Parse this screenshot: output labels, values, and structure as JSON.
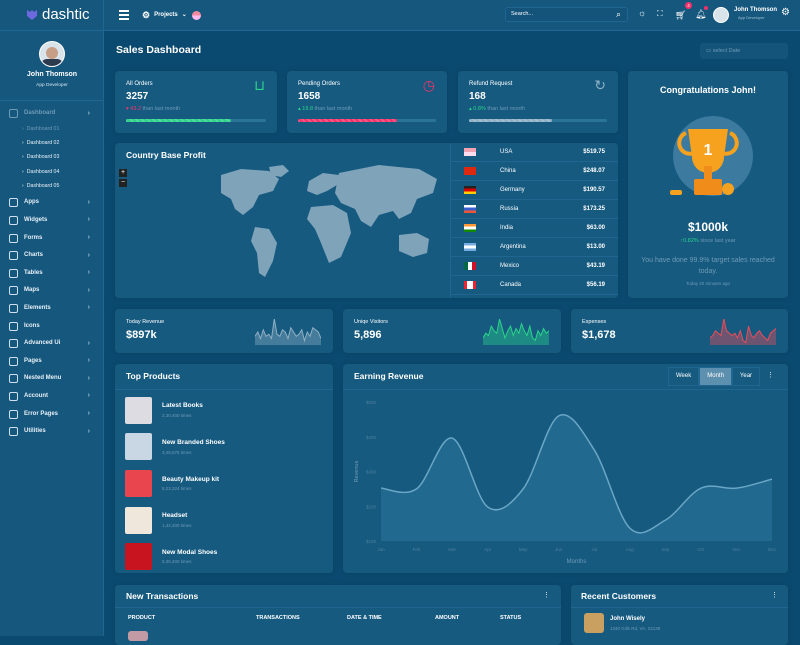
{
  "app": {
    "name": "dashtic",
    "logo_icon": "shield-logo-icon"
  },
  "sidebar": {
    "user": {
      "name": "John Thomson",
      "role": "App Developer"
    },
    "dashboard": {
      "label": "Dashboard",
      "subitems": [
        "Dashboard 01",
        "Dashboard 02",
        "Dashboard 03",
        "Dashboard 04",
        "Dashboard 05"
      ]
    },
    "items": [
      {
        "label": "Apps",
        "icon": "layers-icon"
      },
      {
        "label": "Widgets",
        "icon": "cube-icon"
      },
      {
        "label": "Forms",
        "icon": "edit-icon"
      },
      {
        "label": "Charts",
        "icon": "pie-chart-icon"
      },
      {
        "label": "Tables",
        "icon": "table-icon"
      },
      {
        "label": "Maps",
        "icon": "map-pin-icon"
      },
      {
        "label": "Elements",
        "icon": "grid-icon"
      },
      {
        "label": "Icons",
        "icon": "drop-icon"
      },
      {
        "label": "Advanced Ui",
        "icon": "archive-icon"
      },
      {
        "label": "Pages",
        "icon": "file-icon"
      },
      {
        "label": "Nested Menu",
        "icon": "sliders-icon"
      },
      {
        "label": "Account",
        "icon": "users-icon"
      },
      {
        "label": "Error Pages",
        "icon": "alert-icon"
      },
      {
        "label": "Utilities",
        "icon": "settings-icon"
      }
    ]
  },
  "topbar": {
    "projects_label": "Projects",
    "search_placeholder": "Search...",
    "cart_badge": "4",
    "user": {
      "name": "John Thomson",
      "role": "App Developer"
    }
  },
  "page": {
    "title": "Sales Dashboard",
    "date_placeholder": "select Date"
  },
  "stats": [
    {
      "label": "All Orders",
      "value": "3257",
      "change": "43.2",
      "dir": "down",
      "suffix": "than last month",
      "progress": 75,
      "color": "#2bd38a",
      "icon": "basket-icon"
    },
    {
      "label": "Pending Orders",
      "value": "1658",
      "change": "19.8",
      "dir": "up",
      "suffix": "than last month",
      "progress": 72,
      "color": "#f5336a",
      "icon": "stopwatch-icon"
    },
    {
      "label": "Refund Request",
      "value": "168",
      "change": "0.8%",
      "dir": "up",
      "suffix": "than last month",
      "progress": 60,
      "color": "#8fb0c4",
      "icon": "refresh-icon"
    }
  ],
  "congrats": {
    "title": "Congratulations John!",
    "trophy_rank": "1",
    "amount": "$1000k",
    "change": "0.82%",
    "change_suffix": "since last year",
    "message": "You have done 99.9% target sales reached today.",
    "time": "Today 20 minutes ago"
  },
  "country": {
    "title": "Country Base Profit",
    "zoom_in": "+",
    "zoom_out": "−",
    "rows": [
      {
        "country": "USA",
        "value": "$519.75",
        "flag": "us"
      },
      {
        "country": "China",
        "value": "$248.07",
        "flag": "cn"
      },
      {
        "country": "Germany",
        "value": "$190.57",
        "flag": "de"
      },
      {
        "country": "Russia",
        "value": "$173.25",
        "flag": "ru"
      },
      {
        "country": "India",
        "value": "$63.00",
        "flag": "in"
      },
      {
        "country": "Argentina",
        "value": "$13.00",
        "flag": "ar"
      },
      {
        "country": "Mexico",
        "value": "$43.19",
        "flag": "mx"
      },
      {
        "country": "Canada",
        "value": "$56.19",
        "flag": "ca"
      }
    ]
  },
  "minis": [
    {
      "label": "Today Revenue",
      "value": "$897k",
      "color": "#8fb0c4",
      "spark": [
        4,
        6,
        3,
        7,
        4,
        5,
        3,
        12,
        5,
        4,
        7,
        6,
        3,
        8,
        6,
        4,
        5,
        7,
        2,
        6,
        4,
        8,
        7,
        6,
        3
      ]
    },
    {
      "label": "Uniqe Visitors",
      "value": "5,896",
      "color": "#2bd38a",
      "spark": [
        3,
        5,
        4,
        8,
        6,
        5,
        11,
        7,
        3,
        6,
        8,
        4,
        7,
        5,
        9,
        6,
        4,
        8,
        3,
        2,
        6,
        4,
        7,
        5,
        6
      ]
    },
    {
      "label": "Expenses",
      "value": "$1,678",
      "color": "#ef4c58",
      "spark": [
        3,
        4,
        6,
        5,
        4,
        11,
        6,
        5,
        4,
        5,
        3,
        6,
        2,
        1,
        8,
        4,
        3,
        5,
        6,
        4,
        3,
        2,
        5,
        6,
        7
      ]
    }
  ],
  "products": {
    "title": "Top Products",
    "items": [
      {
        "name": "Latest Books",
        "count": "2,30,400 times",
        "thumb": "#dcdce2"
      },
      {
        "name": "New Branded Shoes",
        "count": "3,45,675 times",
        "thumb": "#c9d6e4"
      },
      {
        "name": "Beauty Makeup kit",
        "count": "5,23,324 times",
        "thumb": "#e9454f"
      },
      {
        "name": "Headset",
        "count": "1,42,400 times",
        "thumb": "#efe6dc"
      },
      {
        "name": "New Modal Shoes",
        "count": "5,35,400 times",
        "thumb": "#c8141e"
      }
    ]
  },
  "chart_data": {
    "type": "area",
    "title": "Earning Revenue",
    "xlabel": "Months",
    "ylabel": "Revenue",
    "categories": [
      "Jan",
      "Feb",
      "Mar",
      "Apr",
      "May",
      "Jun",
      "Jul",
      "Aug",
      "Sep",
      "Oct",
      "Nov",
      "Dec"
    ],
    "values": [
      252,
      250,
      396,
      198,
      250,
      460,
      362,
      137,
      160,
      252,
      252,
      278
    ],
    "ylim": [
      100,
      500
    ],
    "yticks": [
      "$100",
      "$200",
      "$300",
      "$400",
      "$500"
    ],
    "grid": false,
    "tabs": [
      "Week",
      "Month",
      "Year"
    ],
    "active_tab": "Month",
    "color": "#6aa6c6"
  },
  "transactions": {
    "title": "New Transactions",
    "columns": [
      "PRODUCT",
      "TRANSACTIONS",
      "DATE & TIME",
      "AMOUNT",
      "STATUS"
    ]
  },
  "customers": {
    "title": "Recent Customers",
    "items": [
      {
        "name": "John Wisely",
        "address": "1340 Gills Rd, VA, 23139"
      }
    ]
  }
}
